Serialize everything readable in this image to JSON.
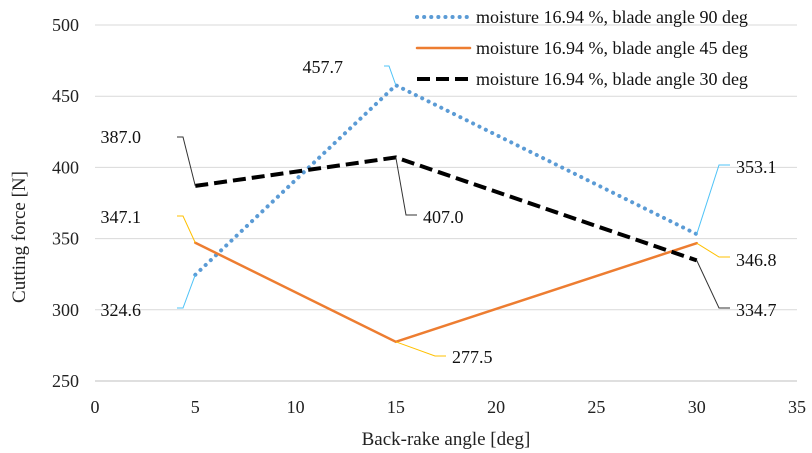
{
  "chart_data": {
    "type": "line",
    "xlabel": "Back-rake angle [deg]",
    "ylabel": "Cutting force [N]",
    "xlim": [
      0,
      35
    ],
    "ylim": [
      250,
      500
    ],
    "x_ticks": [
      "0",
      "5",
      "10",
      "15",
      "20",
      "25",
      "30",
      "35"
    ],
    "y_ticks": [
      "250",
      "300",
      "350",
      "400",
      "450",
      "500"
    ],
    "grid": "horizontal",
    "legend_position": "top-right",
    "series": [
      {
        "name": "moisture 16.94 %, blade angle 90 deg",
        "color": "#5b9bd5",
        "style": "dotted",
        "x": [
          5,
          15,
          30
        ],
        "values": [
          324.6,
          457.7,
          353.1
        ],
        "labels": [
          "324.6",
          "457.7",
          "353.1"
        ]
      },
      {
        "name": "moisture 16.94 %, blade angle 45 deg",
        "color": "#ed7d31",
        "style": "solid",
        "x": [
          5,
          15,
          30
        ],
        "values": [
          347.1,
          277.5,
          346.8
        ],
        "labels": [
          "347.1",
          "277.5",
          "346.8"
        ]
      },
      {
        "name": "moisture 16.94 %, blade angle 30 deg",
        "color": "#000000",
        "style": "dashed",
        "x": [
          5,
          15,
          30
        ],
        "values": [
          387.0,
          407.0,
          334.7
        ],
        "labels": [
          "387.0",
          "407.0",
          "334.7"
        ]
      }
    ]
  }
}
